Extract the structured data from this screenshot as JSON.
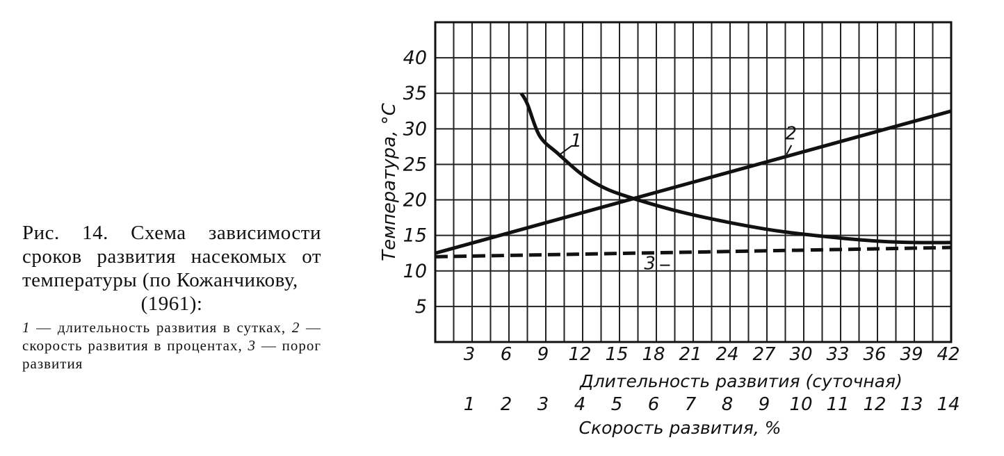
{
  "caption": {
    "title": "Рис. 14. Схема зависимости сроков развития насекомых от температуры (по Кожанчикову,",
    "year": "(1961):",
    "legend": [
      {
        "num": "1",
        "text": " — длительность развития в сутках, "
      },
      {
        "num": "2",
        "text": " — скорость развития в процентах, "
      },
      {
        "num": "3",
        "text": " — порог развития"
      }
    ]
  },
  "chart_data": {
    "type": "line",
    "ylabel": "Температура, °С",
    "xlabel": "Длительность развития (суточная)",
    "x2label": "Скорость развития, %",
    "ylim": [
      0,
      45
    ],
    "xlim": [
      0,
      42
    ],
    "y_ticks": [
      "5",
      "10",
      "15",
      "20",
      "25",
      "30",
      "35",
      "40"
    ],
    "x_ticks": [
      "3",
      "6",
      "9",
      "12",
      "15",
      "18",
      "21",
      "24",
      "27",
      "30",
      "33",
      "36",
      "39",
      "42"
    ],
    "x2_ticks": [
      "1",
      "2",
      "3",
      "4",
      "5",
      "6",
      "7",
      "8",
      "9",
      "10",
      "11",
      "12",
      "13",
      "14"
    ],
    "grid": true,
    "series": [
      {
        "name": "1",
        "style": "solid",
        "points": [
          [
            7,
            35
          ],
          [
            7.5,
            33.5
          ],
          [
            8.5,
            29
          ],
          [
            10,
            26.5
          ],
          [
            12,
            23.5
          ],
          [
            14,
            21.5
          ],
          [
            16.5,
            20
          ],
          [
            20,
            18.3
          ],
          [
            24,
            16.8
          ],
          [
            28,
            15.6
          ],
          [
            32,
            14.8
          ],
          [
            36,
            14.2
          ],
          [
            39,
            14
          ],
          [
            42,
            14
          ]
        ]
      },
      {
        "name": "2",
        "style": "solid",
        "points": [
          [
            0,
            12.5
          ],
          [
            42,
            32.5
          ]
        ]
      },
      {
        "name": "3",
        "style": "dashed",
        "points": [
          [
            0,
            12
          ],
          [
            42,
            13.3
          ]
        ]
      }
    ],
    "series_label_positions": [
      {
        "name": "1",
        "at": [
          11,
          27.5
        ]
      },
      {
        "name": "2",
        "at": [
          28.5,
          28.5
        ]
      },
      {
        "name": "3",
        "at": [
          17,
          10.2
        ]
      }
    ]
  }
}
